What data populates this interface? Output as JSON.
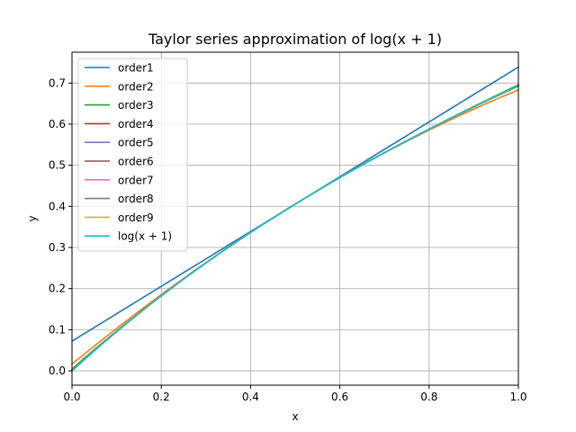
{
  "chart_data": {
    "type": "line",
    "title": "Taylor series approximation of log(x + 1)",
    "xlabel": "x",
    "ylabel": "y",
    "xlim": [
      0,
      1
    ],
    "ylim": [
      -0.035,
      0.775
    ],
    "xticks": [
      0.0,
      0.2,
      0.4,
      0.6,
      0.8,
      1.0
    ],
    "xtick_labels": [
      "0.0",
      "0.2",
      "0.4",
      "0.6",
      "0.8",
      "1.0"
    ],
    "yticks": [
      0.0,
      0.1,
      0.2,
      0.3,
      0.4,
      0.5,
      0.6,
      0.7
    ],
    "ytick_labels": [
      "0.0",
      "0.1",
      "0.2",
      "0.3",
      "0.4",
      "0.5",
      "0.6",
      "0.7"
    ],
    "grid": true,
    "legend_position": "upper-left",
    "expansion_point": 0.5,
    "x": [
      0.0,
      0.05,
      0.1,
      0.15,
      0.2,
      0.25,
      0.3,
      0.35,
      0.4,
      0.45,
      0.5,
      0.55,
      0.6,
      0.65,
      0.7,
      0.75,
      0.8,
      0.85,
      0.9,
      0.95,
      1.0
    ],
    "series": [
      {
        "name": "order1",
        "color": "#1f77b4",
        "values": [
          0.0721,
          0.1054,
          0.1388,
          0.1721,
          0.2054,
          0.2388,
          0.2721,
          0.3054,
          0.3388,
          0.3721,
          0.4055,
          0.4388,
          0.4721,
          0.5054,
          0.5388,
          0.5721,
          0.6054,
          0.6388,
          0.6721,
          0.7054,
          0.7388
        ]
      },
      {
        "name": "order2",
        "color": "#ff7f0e",
        "values": [
          0.0166,
          0.061,
          0.1043,
          0.1466,
          0.1877,
          0.2276,
          0.2665,
          0.3043,
          0.341,
          0.3766,
          0.4112,
          0.4446,
          0.4769,
          0.5082,
          0.5383,
          0.5674,
          0.5954,
          0.6223,
          0.6481,
          0.6728,
          0.6964
        ]
      },
      {
        "name": "order3",
        "color": "#2ca02c",
        "values": [
          0.0067,
          0.0538,
          0.0994,
          0.1435,
          0.1862,
          0.227,
          0.2662,
          0.3044,
          0.341,
          0.3765,
          0.4108,
          0.444,
          0.476,
          0.507,
          0.5368,
          0.5655,
          0.5931,
          0.6196,
          0.6451,
          0.6694,
          0.6931
        ]
      },
      {
        "name": "order4",
        "color": "#d62728",
        "values": [
          0.0029,
          0.0513,
          0.0977,
          0.1425,
          0.1857,
          0.2268,
          0.2661,
          0.3044,
          0.341,
          0.3765,
          0.4108,
          0.444,
          0.4762,
          0.5073,
          0.5373,
          0.5662,
          0.594,
          0.6207,
          0.6463,
          0.6708,
          0.6944
        ]
      },
      {
        "name": "order5",
        "color": "#9467bd",
        "values": [
          0.0013,
          0.0504,
          0.0971,
          0.1421,
          0.1855,
          0.2267,
          0.2661,
          0.3044,
          0.341,
          0.3765,
          0.4108,
          0.444,
          0.4762,
          0.5073,
          0.5374,
          0.5664,
          0.5944,
          0.6214,
          0.6474,
          0.6725,
          0.6966
        ]
      },
      {
        "name": "order6",
        "color": "#8c564b",
        "values": [
          0.0006,
          0.05,
          0.0969,
          0.142,
          0.1854,
          0.2267,
          0.2661,
          0.3044,
          0.341,
          0.3765,
          0.4108,
          0.444,
          0.4762,
          0.5073,
          0.5374,
          0.5664,
          0.5945,
          0.6216,
          0.6477,
          0.6729,
          0.6972
        ]
      },
      {
        "name": "order7",
        "color": "#e377c2",
        "values": [
          0.0003,
          0.0498,
          0.0968,
          0.1419,
          0.1854,
          0.2267,
          0.2661,
          0.3044,
          0.341,
          0.3765,
          0.4108,
          0.444,
          0.4762,
          0.5073,
          0.5374,
          0.5664,
          0.5945,
          0.6217,
          0.6478,
          0.6731,
          0.6976
        ]
      },
      {
        "name": "order8",
        "color": "#7f7f7f",
        "values": [
          0.0001,
          0.0497,
          0.0968,
          0.1419,
          0.1854,
          0.2267,
          0.2661,
          0.3044,
          0.341,
          0.3765,
          0.4108,
          0.444,
          0.4762,
          0.5073,
          0.5374,
          0.5664,
          0.5945,
          0.6217,
          0.6479,
          0.6732,
          0.6977
        ]
      },
      {
        "name": "order9",
        "color": "#bcbd22",
        "values": [
          0.0001,
          0.0497,
          0.0968,
          0.1419,
          0.1854,
          0.2267,
          0.2661,
          0.3044,
          0.341,
          0.3765,
          0.4108,
          0.444,
          0.4762,
          0.5073,
          0.5374,
          0.5664,
          0.5945,
          0.6217,
          0.6479,
          0.6732,
          0.6978
        ]
      },
      {
        "name": "log(x + 1)",
        "color": "#17becf",
        "values": [
          0.0,
          0.0488,
          0.0953,
          0.1398,
          0.1823,
          0.2231,
          0.2624,
          0.3001,
          0.3365,
          0.3716,
          0.4055,
          0.4383,
          0.47,
          0.5008,
          0.5306,
          0.5596,
          0.5878,
          0.6152,
          0.6419,
          0.6678,
          0.6931
        ]
      }
    ]
  }
}
